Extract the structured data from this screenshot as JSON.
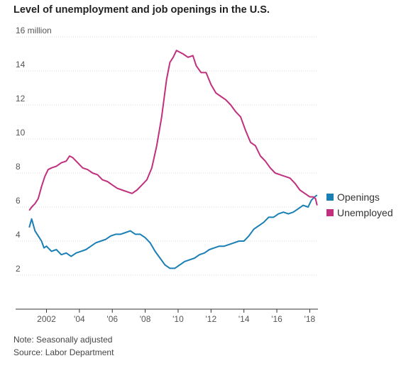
{
  "chart_data": {
    "type": "line",
    "title": "Level of unemployment and job openings in the U.S.",
    "y_top_label": "16 million",
    "y_ticks": [
      {
        "value": 2,
        "label": "2"
      },
      {
        "value": 4,
        "label": "4"
      },
      {
        "value": 6,
        "label": "6"
      },
      {
        "value": 8,
        "label": "8"
      },
      {
        "value": 10,
        "label": "10"
      },
      {
        "value": 12,
        "label": "12"
      },
      {
        "value": 14,
        "label": "14"
      },
      {
        "value": 16,
        "label": "16 million"
      }
    ],
    "ylim": [
      0,
      16
    ],
    "xlim": [
      2000.9,
      2018.5
    ],
    "x_ticks": [
      {
        "value": 2002,
        "label": "2002"
      },
      {
        "value": 2004,
        "label": "'04"
      },
      {
        "value": 2006,
        "label": "'06"
      },
      {
        "value": 2008,
        "label": "'08"
      },
      {
        "value": 2010,
        "label": "'10"
      },
      {
        "value": 2012,
        "label": "'12"
      },
      {
        "value": 2014,
        "label": "'14"
      },
      {
        "value": 2016,
        "label": "'16"
      },
      {
        "value": 2018,
        "label": "'18"
      }
    ],
    "grid": true,
    "legend_position": "right",
    "series": [
      {
        "name": "Openings",
        "color": "#1a7fb5",
        "points": [
          [
            2000.95,
            4.8
          ],
          [
            2001.1,
            5.3
          ],
          [
            2001.3,
            4.6
          ],
          [
            2001.5,
            4.3
          ],
          [
            2001.7,
            4.0
          ],
          [
            2001.85,
            3.6
          ],
          [
            2002.0,
            3.7
          ],
          [
            2002.3,
            3.4
          ],
          [
            2002.6,
            3.5
          ],
          [
            2002.9,
            3.2
          ],
          [
            2003.2,
            3.3
          ],
          [
            2003.5,
            3.1
          ],
          [
            2003.8,
            3.3
          ],
          [
            2004.1,
            3.4
          ],
          [
            2004.4,
            3.5
          ],
          [
            2004.7,
            3.7
          ],
          [
            2005.0,
            3.9
          ],
          [
            2005.3,
            4.0
          ],
          [
            2005.6,
            4.1
          ],
          [
            2005.9,
            4.3
          ],
          [
            2006.2,
            4.4
          ],
          [
            2006.5,
            4.4
          ],
          [
            2006.8,
            4.5
          ],
          [
            2007.1,
            4.6
          ],
          [
            2007.4,
            4.4
          ],
          [
            2007.7,
            4.4
          ],
          [
            2008.0,
            4.2
          ],
          [
            2008.3,
            3.9
          ],
          [
            2008.6,
            3.4
          ],
          [
            2008.9,
            3.0
          ],
          [
            2009.2,
            2.6
          ],
          [
            2009.5,
            2.4
          ],
          [
            2009.8,
            2.4
          ],
          [
            2010.1,
            2.6
          ],
          [
            2010.4,
            2.8
          ],
          [
            2010.7,
            2.9
          ],
          [
            2011.0,
            3.0
          ],
          [
            2011.3,
            3.2
          ],
          [
            2011.6,
            3.3
          ],
          [
            2011.9,
            3.5
          ],
          [
            2012.2,
            3.6
          ],
          [
            2012.5,
            3.7
          ],
          [
            2012.8,
            3.7
          ],
          [
            2013.1,
            3.8
          ],
          [
            2013.4,
            3.9
          ],
          [
            2013.7,
            4.0
          ],
          [
            2014.0,
            4.0
          ],
          [
            2014.3,
            4.3
          ],
          [
            2014.6,
            4.7
          ],
          [
            2014.9,
            4.9
          ],
          [
            2015.2,
            5.1
          ],
          [
            2015.5,
            5.4
          ],
          [
            2015.8,
            5.4
          ],
          [
            2016.1,
            5.6
          ],
          [
            2016.4,
            5.7
          ],
          [
            2016.7,
            5.6
          ],
          [
            2017.0,
            5.7
          ],
          [
            2017.3,
            5.9
          ],
          [
            2017.6,
            6.1
          ],
          [
            2017.9,
            6.0
          ],
          [
            2018.1,
            6.4
          ],
          [
            2018.3,
            6.6
          ],
          [
            2018.45,
            6.7
          ]
        ]
      },
      {
        "name": "Unemployed",
        "color": "#c1307e",
        "points": [
          [
            2000.95,
            5.8
          ],
          [
            2001.1,
            6.0
          ],
          [
            2001.3,
            6.2
          ],
          [
            2001.5,
            6.5
          ],
          [
            2001.7,
            7.2
          ],
          [
            2001.9,
            7.8
          ],
          [
            2002.1,
            8.2
          ],
          [
            2002.3,
            8.3
          ],
          [
            2002.6,
            8.4
          ],
          [
            2002.9,
            8.6
          ],
          [
            2003.2,
            8.7
          ],
          [
            2003.4,
            9.0
          ],
          [
            2003.6,
            8.9
          ],
          [
            2003.9,
            8.6
          ],
          [
            2004.2,
            8.3
          ],
          [
            2004.5,
            8.2
          ],
          [
            2004.8,
            8.0
          ],
          [
            2005.1,
            7.9
          ],
          [
            2005.4,
            7.6
          ],
          [
            2005.7,
            7.5
          ],
          [
            2006.0,
            7.3
          ],
          [
            2006.3,
            7.1
          ],
          [
            2006.6,
            7.0
          ],
          [
            2006.9,
            6.9
          ],
          [
            2007.2,
            6.8
          ],
          [
            2007.5,
            7.0
          ],
          [
            2007.8,
            7.3
          ],
          [
            2008.1,
            7.6
          ],
          [
            2008.4,
            8.3
          ],
          [
            2008.7,
            9.6
          ],
          [
            2009.0,
            11.3
          ],
          [
            2009.3,
            13.5
          ],
          [
            2009.5,
            14.5
          ],
          [
            2009.7,
            14.8
          ],
          [
            2009.9,
            15.2
          ],
          [
            2010.1,
            15.1
          ],
          [
            2010.3,
            15.0
          ],
          [
            2010.6,
            14.8
          ],
          [
            2010.9,
            14.9
          ],
          [
            2011.1,
            14.3
          ],
          [
            2011.4,
            13.9
          ],
          [
            2011.7,
            13.9
          ],
          [
            2012.0,
            13.2
          ],
          [
            2012.3,
            12.7
          ],
          [
            2012.6,
            12.5
          ],
          [
            2012.9,
            12.3
          ],
          [
            2013.2,
            12.0
          ],
          [
            2013.5,
            11.6
          ],
          [
            2013.8,
            11.3
          ],
          [
            2014.1,
            10.5
          ],
          [
            2014.4,
            9.8
          ],
          [
            2014.7,
            9.6
          ],
          [
            2015.0,
            9.0
          ],
          [
            2015.3,
            8.7
          ],
          [
            2015.6,
            8.3
          ],
          [
            2015.9,
            8.0
          ],
          [
            2016.2,
            7.9
          ],
          [
            2016.5,
            7.8
          ],
          [
            2016.8,
            7.7
          ],
          [
            2017.1,
            7.4
          ],
          [
            2017.4,
            7.0
          ],
          [
            2017.7,
            6.8
          ],
          [
            2018.0,
            6.6
          ],
          [
            2018.2,
            6.6
          ],
          [
            2018.35,
            6.5
          ],
          [
            2018.45,
            6.1
          ]
        ]
      }
    ]
  },
  "legend": {
    "openings_label": "Openings",
    "unemployed_label": "Unemployed"
  },
  "notes": {
    "note": "Note: Seasonally adjusted",
    "source": "Source: Labor Department"
  }
}
